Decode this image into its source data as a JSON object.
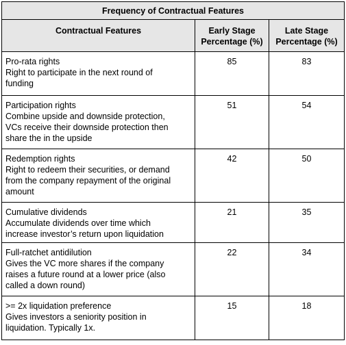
{
  "table": {
    "title": "Frequency of Contractual Features",
    "headers": {
      "feature": "Contractual Features",
      "early_line1": "Early Stage",
      "early_line2": "Percentage (%)",
      "late_line1": "Late Stage",
      "late_line2": "Percentage (%)"
    },
    "rows": [
      {
        "lines": [
          "Pro-rata rights",
          "Right to participate in the next round of",
          "funding"
        ],
        "early": "85",
        "late": "83"
      },
      {
        "lines": [
          "Participation rights",
          "Combine upside and downside protection,",
          "VCs receive their downside protection then",
          "share the in the upside"
        ],
        "early": "51",
        "late": "54"
      },
      {
        "lines": [
          "Redemption rights",
          "Right to redeem their securities, or demand",
          "from the company repayment of the original",
          "amount"
        ],
        "early": "42",
        "late": "50"
      },
      {
        "lines": [
          "Cumulative dividends",
          "Accumulate dividends over time which",
          "increase investor’s return upon liquidation"
        ],
        "early": "21",
        "late": "35"
      },
      {
        "lines": [
          "Full-ratchet antidilution",
          "Gives the VC more shares if the company",
          "raises a future round at a lower price (also",
          "called a down round)"
        ],
        "early": "22",
        "late": "34"
      },
      {
        "lines": [
          ">= 2x liquidation preference",
          "Gives investors a seniority position in",
          "liquidation. Typically 1x."
        ],
        "early": "15",
        "late": "18"
      }
    ]
  }
}
